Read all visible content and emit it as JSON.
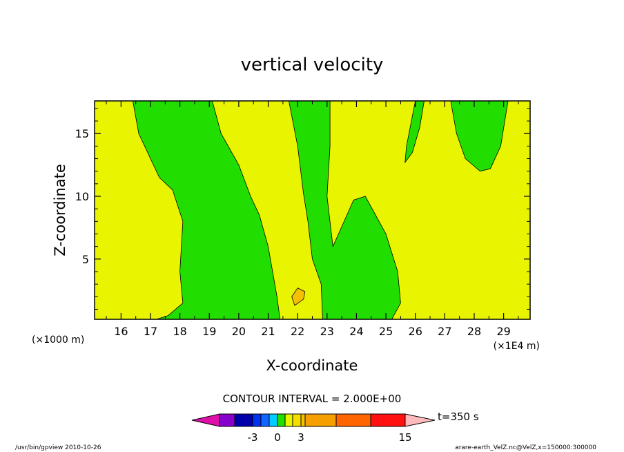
{
  "chart_data": {
    "type": "contour",
    "title": "vertical velocity",
    "xlabel": "X-coordinate",
    "ylabel": "Z-coordinate",
    "x_unit_label": "(×1E4 m)",
    "y_unit_label": "(×1000 m)",
    "xlim": [
      15.1,
      29.9
    ],
    "ylim": [
      0.2,
      17.6
    ],
    "x_ticks": [
      "16",
      "17",
      "18",
      "19",
      "20",
      "21",
      "22",
      "23",
      "24",
      "25",
      "26",
      "27",
      "28",
      "29"
    ],
    "y_ticks": [
      "5",
      "10",
      "15"
    ],
    "contour_interval_label": "CONTOUR INTERVAL = 2.000E+00",
    "time_label": "t=350 s",
    "colorbar_labels": [
      "-3",
      "0",
      "3",
      "15"
    ],
    "colors": {
      "negative": "#e9f500",
      "positive": "#22dd00",
      "small_positive": "#f5c000"
    },
    "colorbar_colors": [
      "#dd11aa",
      "#8800cc",
      "#0000aa",
      "#0033ee",
      "#1166ff",
      "#00ccff",
      "#22dd00",
      "#e9f500",
      "#f5dd00",
      "#f5c000",
      "#f5a000",
      "#ff6600",
      "#ff1111",
      "#ff7777",
      "#ffbbbb"
    ],
    "footer_left": "/usr/bin/gpview   2010-10-26",
    "footer_right": "arare-earth_VelZ.nc@VelZ,x=150000:300000",
    "regions": [
      {
        "label": "positive",
        "points": [
          [
            16.4,
            17.6
          ],
          [
            16.6,
            15
          ],
          [
            17.3,
            11.5
          ],
          [
            17.75,
            10.5
          ],
          [
            18.1,
            8
          ],
          [
            18.0,
            4
          ],
          [
            18.1,
            1.5
          ],
          [
            17.6,
            0.5
          ],
          [
            17.2,
            0.2
          ],
          [
            21.4,
            0.2
          ],
          [
            21.3,
            2
          ],
          [
            21.0,
            6
          ],
          [
            20.7,
            8.5
          ],
          [
            20.4,
            10
          ],
          [
            20.0,
            12.5
          ],
          [
            19.4,
            15
          ],
          [
            19.1,
            17.6
          ]
        ]
      },
      {
        "label": "positive",
        "points": [
          [
            21.7,
            17.6
          ],
          [
            22.0,
            14
          ],
          [
            22.2,
            10.2
          ],
          [
            22.35,
            8
          ],
          [
            22.5,
            5
          ],
          [
            22.8,
            3
          ],
          [
            22.85,
            0.2
          ],
          [
            25.2,
            0.2
          ],
          [
            25.5,
            1.5
          ],
          [
            25.4,
            4
          ],
          [
            25.0,
            7
          ],
          [
            24.3,
            10
          ],
          [
            23.9,
            9.7
          ],
          [
            23.2,
            6
          ],
          [
            23.0,
            10
          ],
          [
            23.1,
            14
          ],
          [
            23.1,
            17.6
          ]
        ]
      },
      {
        "label": "positive",
        "points": [
          [
            26.0,
            17.6
          ],
          [
            25.7,
            14
          ],
          [
            25.65,
            12.7
          ],
          [
            25.9,
            13.5
          ],
          [
            26.15,
            15.5
          ],
          [
            26.3,
            17.6
          ]
        ]
      },
      {
        "label": "positive",
        "points": [
          [
            27.2,
            17.6
          ],
          [
            27.4,
            15
          ],
          [
            27.7,
            13
          ],
          [
            28.2,
            12
          ],
          [
            28.55,
            12.2
          ],
          [
            28.9,
            14
          ],
          [
            29.15,
            17.6
          ]
        ]
      },
      {
        "label": "small_positive",
        "points": [
          [
            22.0,
            2.7
          ],
          [
            22.25,
            2.4
          ],
          [
            22.2,
            1.8
          ],
          [
            21.9,
            1.3
          ],
          [
            21.8,
            2.0
          ]
        ]
      }
    ]
  }
}
